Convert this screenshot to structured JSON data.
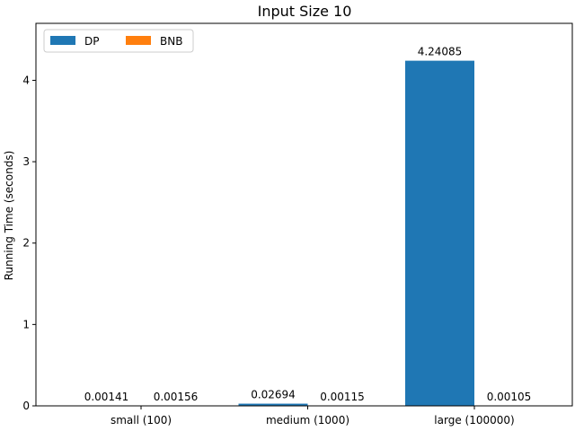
{
  "chart_data": {
    "type": "bar",
    "title": "Input Size 10",
    "xlabel": "",
    "ylabel": "Running Time (seconds)",
    "categories": [
      "small (100)",
      "medium (1000)",
      "large (100000)"
    ],
    "series": [
      {
        "name": "DP",
        "color": "#1f77b4",
        "values": [
          0.00141,
          0.02694,
          4.24085
        ],
        "labels": [
          "0.00141",
          "0.02694",
          "4.24085"
        ]
      },
      {
        "name": "BNB",
        "color": "#ff7f0e",
        "values": [
          0.00156,
          0.00115,
          0.00105
        ],
        "labels": [
          "0.00156",
          "0.00115",
          "0.00105"
        ]
      }
    ],
    "ylim": [
      0,
      4.7
    ],
    "yticks": [
      0,
      1,
      2,
      3,
      4
    ],
    "grid": false,
    "legend": "top-left"
  }
}
